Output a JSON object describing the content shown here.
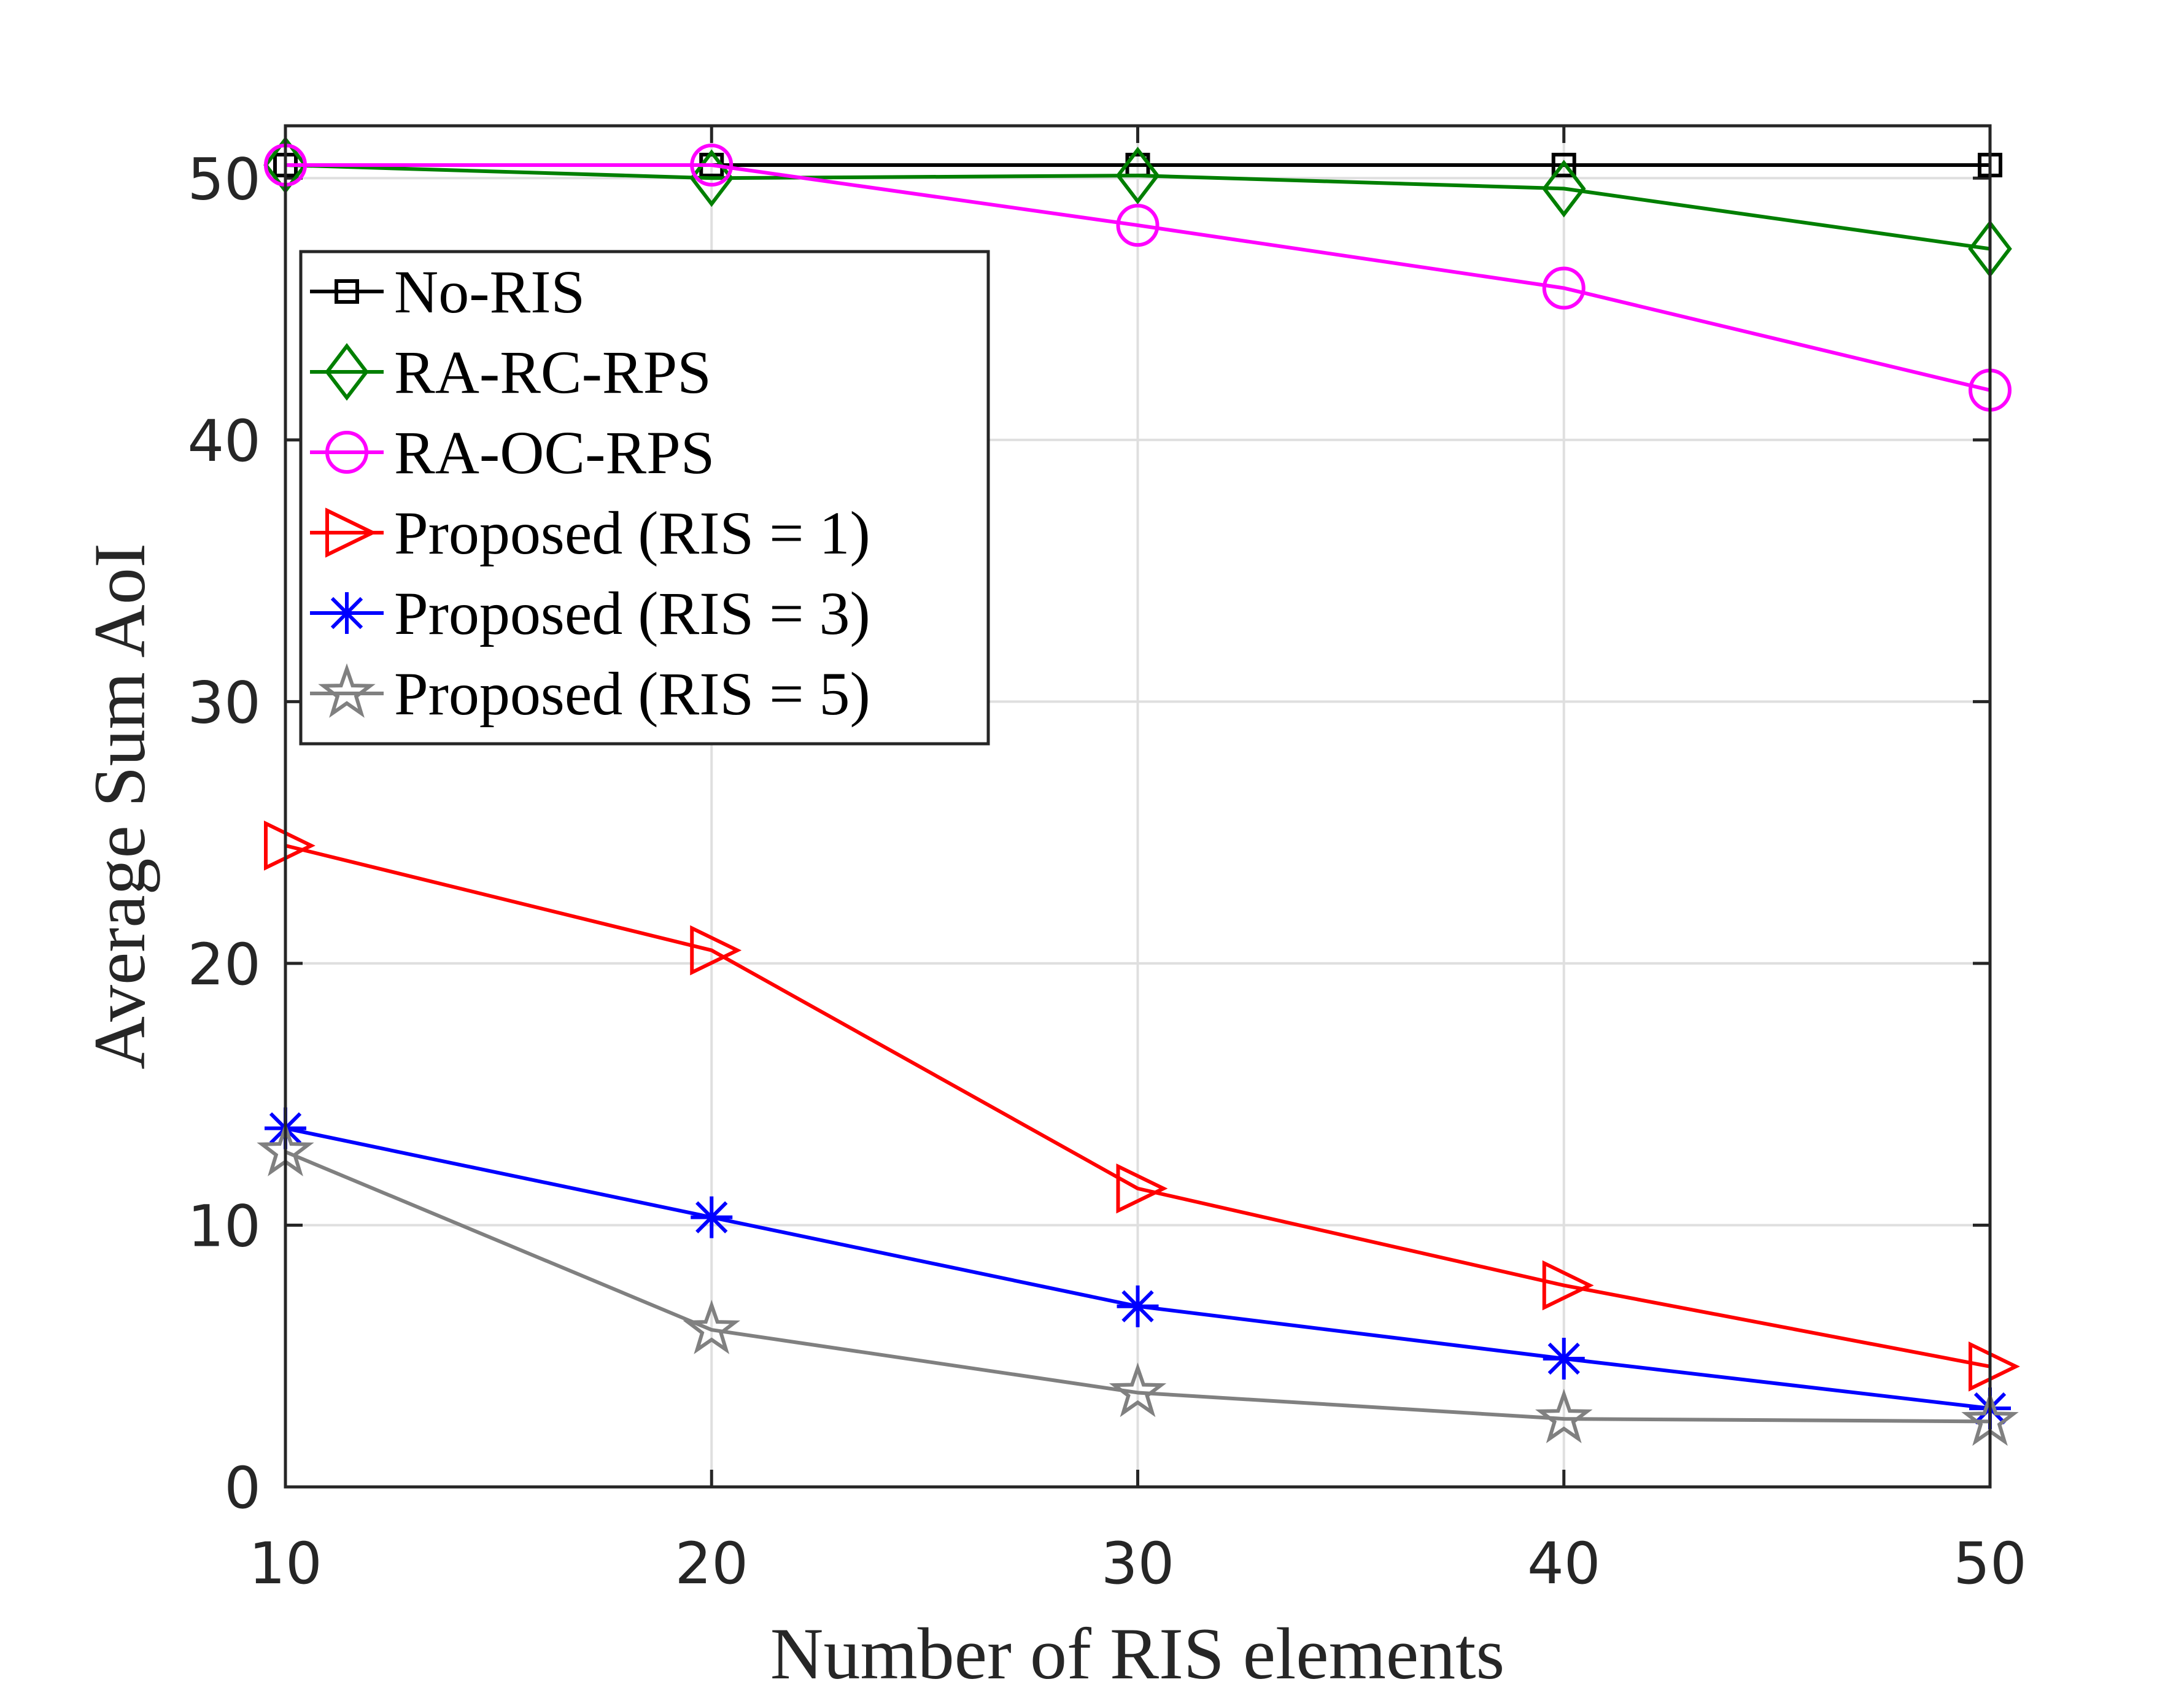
{
  "chart_data": {
    "type": "line",
    "title": "",
    "xlabel": "Number of RIS elements",
    "ylabel": "Average Sum AoI",
    "x": [
      10,
      20,
      30,
      40,
      50
    ],
    "xlim": [
      10,
      50
    ],
    "ylim": [
      0,
      52
    ],
    "xticks": [
      10,
      20,
      30,
      40,
      50
    ],
    "yticks": [
      0,
      10,
      20,
      30,
      40,
      50
    ],
    "grid": true,
    "legend_position": "upper-left",
    "series": [
      {
        "name": "No-RIS",
        "color": "#000000",
        "marker": "square",
        "values": [
          50.5,
          50.5,
          50.5,
          50.5,
          50.5
        ]
      },
      {
        "name": "RA-RC-RPS",
        "color": "#007f00",
        "marker": "diamond",
        "values": [
          50.5,
          50.0,
          50.1,
          49.6,
          47.3
        ]
      },
      {
        "name": "RA-OC-RPS",
        "color": "#ff00ff",
        "marker": "circle",
        "values": [
          50.5,
          50.5,
          48.2,
          45.8,
          41.9
        ]
      },
      {
        "name": "Proposed (RIS = 1)",
        "color": "#ff0000",
        "marker": "triangle-right",
        "values": [
          24.5,
          20.5,
          11.4,
          7.7,
          4.6
        ]
      },
      {
        "name": "Proposed (RIS = 3)",
        "color": "#0000ff",
        "marker": "asterisk",
        "values": [
          13.7,
          10.3,
          6.9,
          4.9,
          3.0
        ]
      },
      {
        "name": "Proposed (RIS = 5)",
        "color": "#808080",
        "marker": "star",
        "values": [
          12.8,
          6.0,
          3.6,
          2.6,
          2.5
        ]
      }
    ]
  }
}
